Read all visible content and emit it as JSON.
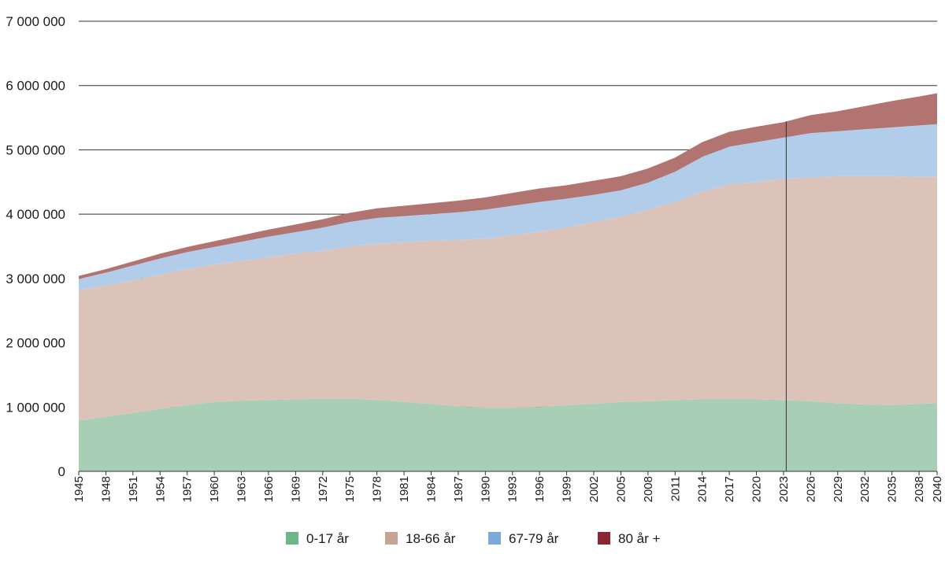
{
  "chart_data": {
    "type": "area",
    "stacked": true,
    "title": "",
    "xlabel": "",
    "ylabel": "",
    "x_range": [
      1945,
      2040
    ],
    "ylim": [
      0,
      7000000
    ],
    "y_ticks": [
      0,
      1000000,
      2000000,
      3000000,
      4000000,
      5000000,
      6000000,
      7000000
    ],
    "y_tick_labels": [
      "0",
      "1 000 000",
      "2 000 000",
      "3 000 000",
      "4 000 000",
      "5 000 000",
      "6 000 000",
      "7 000 000"
    ],
    "x_ticks": [
      1945,
      1948,
      1951,
      1954,
      1957,
      1960,
      1963,
      1966,
      1969,
      1972,
      1975,
      1978,
      1981,
      1984,
      1987,
      1990,
      1993,
      1996,
      1999,
      2002,
      2005,
      2008,
      2011,
      2014,
      2017,
      2020,
      2023,
      2026,
      2029,
      2032,
      2035,
      2038,
      2040
    ],
    "x_tick_labels": [
      "1945",
      "1948",
      "1951",
      "1954",
      "1957",
      "1960",
      "1963",
      "1966",
      "1969",
      "1972",
      "1975",
      "1978",
      "1981",
      "1984",
      "1987",
      "1990",
      "1993",
      "1996",
      "1999",
      "2002",
      "2005",
      "2008",
      "2011",
      "2014",
      "2017",
      "2020",
      "2023",
      "2026",
      "2029",
      "2032",
      "2035",
      "2038",
      "2040"
    ],
    "x": [
      1945,
      1948,
      1951,
      1954,
      1957,
      1960,
      1963,
      1966,
      1969,
      1972,
      1975,
      1978,
      1981,
      1984,
      1987,
      1990,
      1993,
      1996,
      1999,
      2002,
      2005,
      2008,
      2011,
      2014,
      2017,
      2020,
      2023,
      2026,
      2029,
      2032,
      2035,
      2038,
      2040
    ],
    "series": [
      {
        "name": "0-17 år",
        "color": "#a8ceb6",
        "legend_color": "#6fb588",
        "values": [
          790000,
          850000,
          910000,
          970000,
          1030000,
          1080000,
          1100000,
          1110000,
          1120000,
          1130000,
          1130000,
          1110000,
          1080000,
          1050000,
          1010000,
          990000,
          990000,
          1000000,
          1030000,
          1050000,
          1080000,
          1090000,
          1110000,
          1120000,
          1120000,
          1120000,
          1110000,
          1090000,
          1060000,
          1040000,
          1030000,
          1050000,
          1060000
        ]
      },
      {
        "name": "18-66 år",
        "color": "#dcc3ba",
        "legend_color": "#c8a292",
        "values": [
          2030000,
          2040000,
          2060000,
          2090000,
          2120000,
          2140000,
          2170000,
          2220000,
          2270000,
          2300000,
          2370000,
          2430000,
          2480000,
          2540000,
          2590000,
          2630000,
          2680000,
          2730000,
          2760000,
          2830000,
          2880000,
          2980000,
          3080000,
          3230000,
          3340000,
          3380000,
          3440000,
          3480000,
          3530000,
          3550000,
          3560000,
          3530000,
          3520000
        ]
      },
      {
        "name": "67-79 år",
        "color": "#b2cdea",
        "legend_color": "#7aa8d8",
        "values": [
          170000,
          200000,
          230000,
          250000,
          260000,
          270000,
          300000,
          320000,
          330000,
          360000,
          380000,
          400000,
          410000,
          410000,
          430000,
          450000,
          460000,
          460000,
          450000,
          420000,
          410000,
          420000,
          470000,
          540000,
          590000,
          620000,
          640000,
          690000,
          700000,
          730000,
          760000,
          800000,
          820000
        ]
      },
      {
        "name": "80 år +",
        "color": "#b17471",
        "legend_color": "#8b2534",
        "values": [
          50000,
          55000,
          65000,
          75000,
          80000,
          90000,
          100000,
          110000,
          120000,
          130000,
          140000,
          150000,
          160000,
          170000,
          180000,
          190000,
          200000,
          210000,
          210000,
          220000,
          220000,
          220000,
          220000,
          230000,
          230000,
          240000,
          240000,
          280000,
          310000,
          360000,
          410000,
          450000,
          480000
        ]
      }
    ],
    "vertical_marker_x": 2023.3,
    "legend_position": "bottom-center",
    "grid": {
      "horizontal": true,
      "vertical": false
    }
  }
}
